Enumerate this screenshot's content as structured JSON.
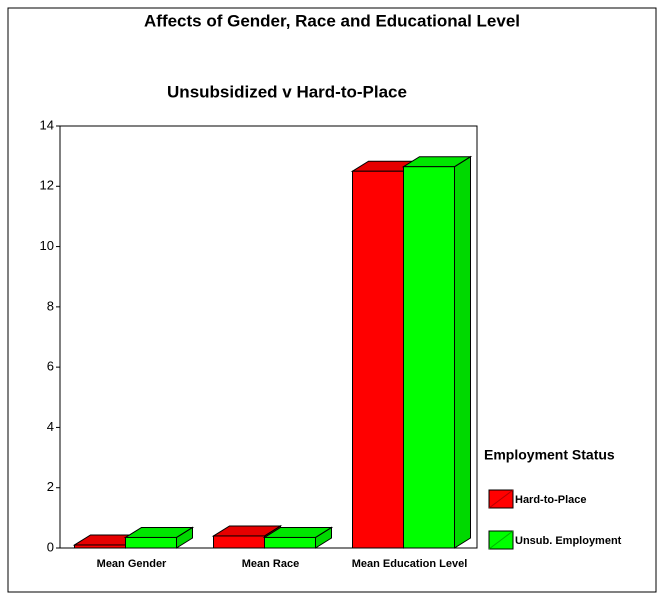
{
  "chart_data": {
    "type": "bar3d",
    "title": "Affects of Gender, Race and Educational Level",
    "subtitle": "Unsubsidized v Hard-to-Place",
    "categories": [
      "Mean Gender",
      "Mean Race",
      "Mean Education Level"
    ],
    "series": [
      {
        "name": "Hard-to-Place",
        "color": "#ff0000",
        "values": [
          0.1,
          0.4,
          12.5
        ]
      },
      {
        "name": "Unsub. Employment",
        "color": "#00ff00",
        "values": [
          0.35,
          0.35,
          12.65
        ]
      }
    ],
    "ylim": [
      0,
      14
    ],
    "yticks": [
      0,
      2,
      4,
      6,
      8,
      10,
      12,
      14
    ],
    "legend_title": "Employment Status",
    "legend": "right"
  }
}
